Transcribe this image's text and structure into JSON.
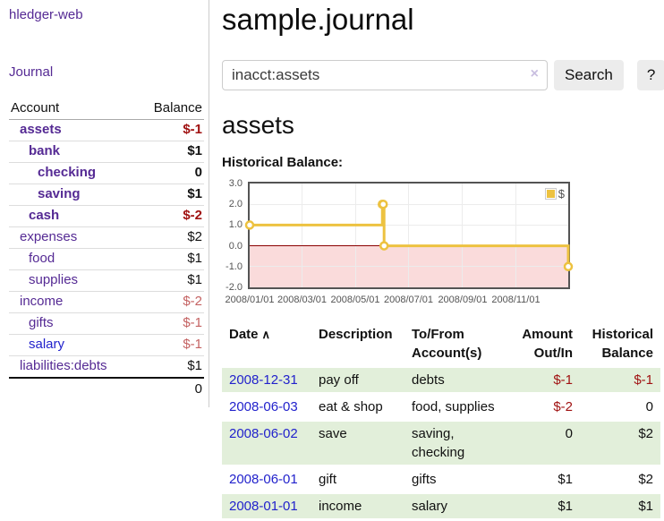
{
  "app": {
    "brand": "hledger-web",
    "nav_journal": "Journal"
  },
  "sidebar": {
    "accounts_header": {
      "account": "Account",
      "balance": "Balance"
    },
    "accounts": [
      {
        "name": "assets",
        "indent": 1,
        "bold": true,
        "balance": "$-1",
        "balance_style": "neg-strong",
        "link_color": "purple"
      },
      {
        "name": "bank",
        "indent": 2,
        "bold": true,
        "balance": "$1",
        "balance_style": "pos-strong",
        "link_color": "purple"
      },
      {
        "name": "checking",
        "indent": 3,
        "bold": true,
        "balance": "0",
        "balance_style": "pos-strong",
        "link_color": "purple"
      },
      {
        "name": "saving",
        "indent": 3,
        "bold": true,
        "balance": "$1",
        "balance_style": "pos-strong",
        "link_color": "purple"
      },
      {
        "name": "cash",
        "indent": 2,
        "bold": true,
        "balance": "$-2",
        "balance_style": "neg-strong",
        "link_color": "purple"
      },
      {
        "name": "expenses",
        "indent": 1,
        "bold": false,
        "balance": "$2",
        "balance_style": "pos",
        "link_color": "purple"
      },
      {
        "name": "food",
        "indent": 2,
        "bold": false,
        "balance": "$1",
        "balance_style": "pos",
        "link_color": "purple"
      },
      {
        "name": "supplies",
        "indent": 2,
        "bold": false,
        "balance": "$1",
        "balance_style": "pos",
        "link_color": "purple"
      },
      {
        "name": "income",
        "indent": 1,
        "bold": false,
        "balance": "$-2",
        "balance_style": "neg-soft",
        "link_color": "purple"
      },
      {
        "name": "gifts",
        "indent": 2,
        "bold": false,
        "balance": "$-1",
        "balance_style": "neg-soft",
        "link_color": "purple"
      },
      {
        "name": "salary",
        "indent": 2,
        "bold": false,
        "balance": "$-1",
        "balance_style": "neg-soft",
        "link_color": "blue"
      },
      {
        "name": "liabilities:debts",
        "indent": 1,
        "bold": false,
        "balance": "$1",
        "balance_style": "pos",
        "link_color": "purple"
      }
    ],
    "total": "0"
  },
  "header": {
    "title": "sample.journal"
  },
  "search": {
    "value": "inacct:assets",
    "clear_icon": "×",
    "button": "Search",
    "help_button": "?"
  },
  "account_page": {
    "title": "assets",
    "chart_title": "Historical Balance:"
  },
  "chart_data": {
    "type": "line",
    "step": true,
    "title": "Historical Balance",
    "series": [
      {
        "name": "$",
        "color": "#edc240",
        "points": [
          [
            "2008-01-01",
            1
          ],
          [
            "2008-06-01",
            2
          ],
          [
            "2008-06-02",
            2
          ],
          [
            "2008-06-03",
            0
          ],
          [
            "2008-12-31",
            -1
          ]
        ]
      }
    ],
    "x_ticks": [
      "2008/01/01",
      "2008/03/01",
      "2008/05/01",
      "2008/07/01",
      "2008/09/01",
      "2008/11/01"
    ],
    "y_ticks": [
      "3.0",
      "2.0",
      "1.0",
      "0.0",
      "-1.0",
      "-2.0"
    ],
    "xlim": [
      "2008-01-01",
      "2008-12-31"
    ],
    "ylim": [
      -2,
      3
    ],
    "grid": true,
    "negative_fill": "#fadbdb",
    "zero_line_color": "#8b0000",
    "legend": {
      "label": "$",
      "position": "top-right"
    }
  },
  "register": {
    "columns": [
      "Date",
      "Description",
      "To/From Account(s)",
      "Amount Out/In",
      "Historical Balance"
    ],
    "sort_icon": "∧",
    "rows": [
      {
        "date": "2008-12-31",
        "description": "pay off",
        "accounts": "debts",
        "amount": "$-1",
        "amount_neg": true,
        "balance": "$-1",
        "balance_neg": true
      },
      {
        "date": "2008-06-03",
        "description": "eat & shop",
        "accounts": "food, supplies",
        "amount": "$-2",
        "amount_neg": true,
        "balance": "0",
        "balance_neg": false
      },
      {
        "date": "2008-06-02",
        "description": "save",
        "accounts": "saving, checking",
        "amount": "0",
        "amount_neg": false,
        "balance": "$2",
        "balance_neg": false
      },
      {
        "date": "2008-06-01",
        "description": "gift",
        "accounts": "gifts",
        "amount": "$1",
        "amount_neg": false,
        "balance": "$2",
        "balance_neg": false
      },
      {
        "date": "2008-01-01",
        "description": "income",
        "accounts": "salary",
        "amount": "$1",
        "amount_neg": false,
        "balance": "$1",
        "balance_neg": false
      }
    ]
  },
  "colors": {
    "link_purple": "#552a94",
    "link_blue": "#2222cc",
    "negative": "#a01212",
    "negative_soft": "#c46262",
    "row_stripe_green": "#e2efda",
    "button_bg": "#ececec",
    "chart_series": "#edc240",
    "chart_negative_fill": "#fadbdb",
    "chart_zero_line": "#8b0000",
    "chart_border": "#545454"
  }
}
